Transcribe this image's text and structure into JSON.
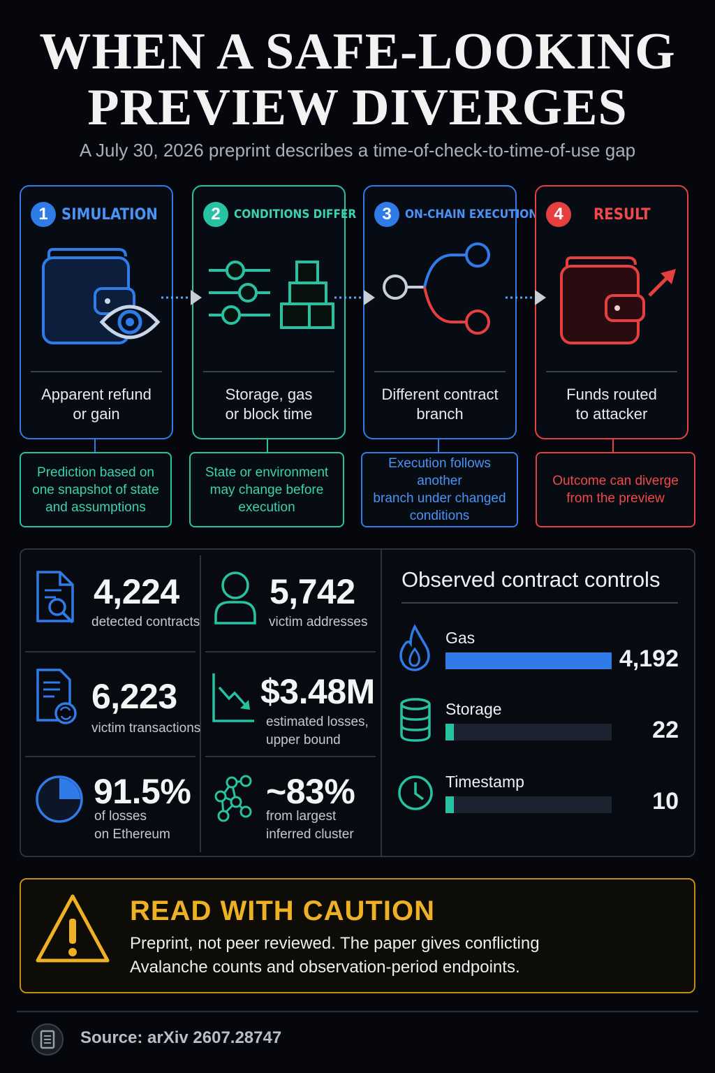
{
  "header": {
    "title_line1": "WHEN A SAFE-LOOKING",
    "title_line2": "PREVIEW DIVERGES",
    "subtitle": "A July 30, 2026 preprint describes a time-of-check-to-time-of-use gap"
  },
  "steps": [
    {
      "number": "1",
      "label": "SIMULATION",
      "caption_line1": "Apparent refund",
      "caption_line2": "or gain",
      "note_line1": "Prediction based on",
      "note_line2": "one snapshot of state",
      "note_line3": "and assumptions",
      "color": "#2f7be8",
      "note_color": "#27c2a2"
    },
    {
      "number": "2",
      "label": "CONDITIONS DIFFER",
      "caption_line1": "Storage, gas",
      "caption_line2": "or block time",
      "note_line1": "State or environment",
      "note_line2": "may change before",
      "note_line3": "execution",
      "color": "#27c2a2",
      "note_color": "#27c2a2"
    },
    {
      "number": "3",
      "label": "ON-CHAIN EXECUTION",
      "caption_line1": "Different contract",
      "caption_line2": "branch",
      "note_line1": "Execution follows another",
      "note_line2": "branch under changed",
      "note_line3": "conditions",
      "color": "#2f7be8",
      "note_color": "#2f7be8"
    },
    {
      "number": "4",
      "label": "RESULT",
      "caption_line1": "Funds routed",
      "caption_line2": "to attacker",
      "note_line1": "Outcome can diverge",
      "note_line2": "from the preview",
      "color": "#e5403f",
      "note_color": "#e5403f"
    }
  ],
  "stats": [
    {
      "value": "4,224",
      "label_line1": "detected contracts",
      "label_line2": "",
      "icon": "document-search-icon"
    },
    {
      "value": "5,742",
      "label_line1": "victim addresses",
      "label_line2": "",
      "icon": "user-icon"
    },
    {
      "value": "6,223",
      "label_line1": "victim transactions",
      "label_line2": "",
      "icon": "document-refresh-icon"
    },
    {
      "value": "$3.48M",
      "label_line1": "estimated losses,",
      "label_line2": "upper bound",
      "icon": "trend-down-icon"
    },
    {
      "value": "91.5%",
      "label_line1": "of losses",
      "label_line2": "on Ethereum",
      "icon": "pie-icon",
      "fraction": 0.915
    },
    {
      "value": "~83%",
      "label_line1": "from largest",
      "label_line2": "inferred cluster",
      "icon": "network-icon"
    }
  ],
  "controls": {
    "title": "Observed contract controls",
    "items": [
      {
        "label": "Gas",
        "value": "4,192",
        "count": 4192,
        "icon": "flame-icon",
        "color": "#2f7be8"
      },
      {
        "label": "Storage",
        "value": "22",
        "count": 22,
        "icon": "database-icon",
        "color": "#27c2a2"
      },
      {
        "label": "Timestamp",
        "value": "10",
        "count": 10,
        "icon": "clock-icon",
        "color": "#27c2a2"
      }
    ]
  },
  "caution": {
    "title": "READ WITH CAUTION",
    "line1": "Preprint, not peer reviewed. The paper gives conflicting",
    "line2": "Avalanche counts and observation-period endpoints.",
    "icon": "warning-icon",
    "color": "#eeb126"
  },
  "footer": {
    "source": "Source: arXiv 2607.28747",
    "icon": "document-icon"
  }
}
